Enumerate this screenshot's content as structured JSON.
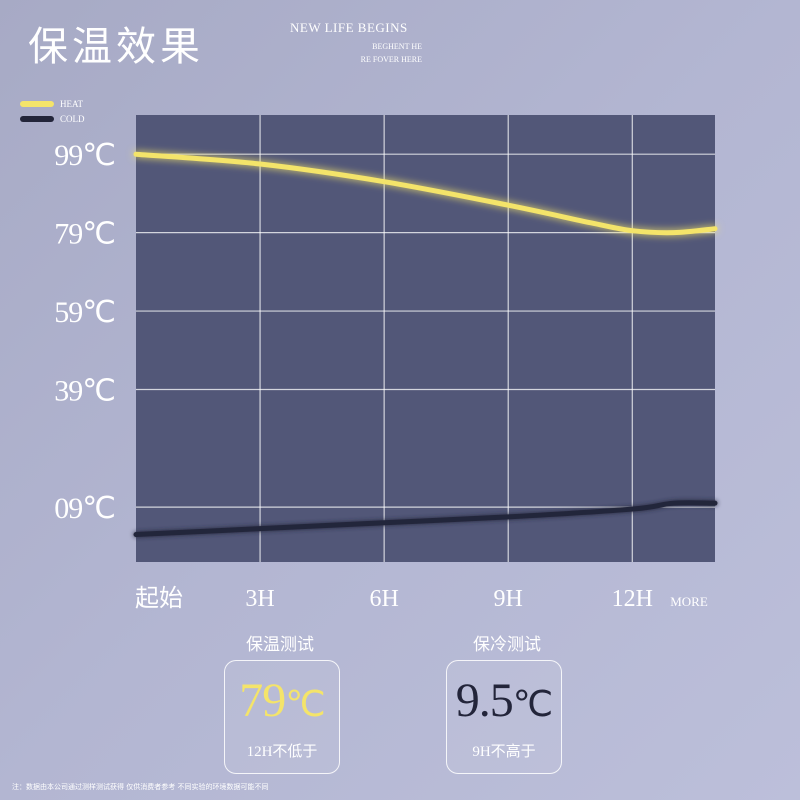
{
  "header": {
    "title": "保温效果",
    "tagline": "NEW LIFE BEGINS",
    "tagline_sub1": "BEGHENT HE",
    "tagline_sub2": "RE FOVER HERE"
  },
  "legend": [
    {
      "label": "HEAT",
      "color": "#f4e46a"
    },
    {
      "label": "COLD",
      "color": "#23253a"
    }
  ],
  "chart_data": {
    "type": "line",
    "x_labels": [
      "起始",
      "3H",
      "6H",
      "9H",
      "12H",
      "MORE"
    ],
    "y_tick_labels": [
      "99℃",
      "79℃",
      "59℃",
      "39℃",
      "09℃"
    ],
    "y_tick_values": [
      99,
      79,
      59,
      39,
      9
    ],
    "xlim": [
      0,
      14
    ],
    "ylim": [
      -5,
      109
    ],
    "grid": true,
    "plot_background": "#525778",
    "series": [
      {
        "name": "HEAT",
        "color": "#f4e46a",
        "x": [
          0,
          3,
          6,
          9,
          11,
          12,
          13,
          14
        ],
        "y": [
          99,
          96.5,
          92,
          86,
          81.5,
          79.5,
          79,
          80
        ]
      },
      {
        "name": "COLD",
        "color": "#23253a",
        "x": [
          0,
          3,
          6,
          9,
          12,
          13,
          14
        ],
        "y": [
          2,
          3.5,
          5,
          6.5,
          8.5,
          10,
          10
        ]
      }
    ]
  },
  "tests": [
    {
      "heading": "保温测试",
      "value": "79",
      "unit": "℃",
      "note": "12H不低于",
      "value_color": "#f4e46a"
    },
    {
      "heading": "保冷测试",
      "value": "9.5",
      "unit": "℃",
      "note": "9H不高于",
      "value_color": "#23253a"
    }
  ],
  "footnote": "注：数据由本公司通过测样测试获得 仅供消费者参考 不同实验的环境数据可能不同"
}
